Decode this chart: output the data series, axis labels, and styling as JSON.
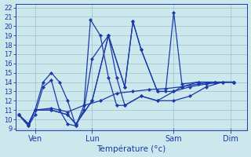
{
  "background_color": "#cce8ec",
  "grid_color": "#99bbcc",
  "line_color": "#1a3aaa",
  "xlabel": "Température (°c)",
  "ylim_min": 8.8,
  "ylim_max": 22.4,
  "xlim_min": -0.2,
  "xlim_max": 14.0,
  "yticks": [
    9,
    10,
    11,
    12,
    13,
    14,
    15,
    16,
    17,
    18,
    19,
    20,
    21,
    22
  ],
  "xtick_positions": [
    1.0,
    4.5,
    9.5,
    13.0
  ],
  "xtick_labels": [
    "Ven",
    "Lun",
    "Sam",
    "Dim"
  ],
  "series": [
    {
      "x": [
        0.0,
        0.6,
        1.0,
        1.5,
        2.0,
        2.5,
        3.0,
        3.5,
        4.0,
        4.5,
        5.5,
        6.0,
        6.5,
        7.5,
        8.5,
        9.5,
        10.5,
        11.5,
        12.5,
        13.2
      ],
      "y": [
        10.5,
        9.3,
        11.0,
        14.0,
        15.0,
        14.0,
        12.0,
        9.3,
        11.0,
        16.5,
        19.0,
        14.5,
        11.5,
        12.5,
        12.0,
        13.0,
        13.5,
        13.8,
        14.0,
        14.0
      ]
    },
    {
      "x": [
        0.0,
        0.6,
        1.0,
        1.5,
        2.0,
        2.5,
        3.0,
        3.5,
        4.0,
        4.4,
        5.0,
        5.5,
        6.0,
        6.5,
        7.5,
        8.5,
        9.5,
        10.5,
        11.5,
        12.5,
        13.2
      ],
      "y": [
        10.5,
        9.3,
        10.5,
        13.5,
        14.2,
        11.0,
        9.5,
        9.3,
        11.5,
        20.7,
        19.0,
        14.5,
        11.5,
        11.5,
        12.5,
        12.0,
        12.0,
        12.5,
        13.5,
        14.0,
        14.0
      ]
    },
    {
      "x": [
        0.0,
        0.6,
        1.0,
        2.0,
        3.0,
        3.5,
        4.5,
        5.5,
        6.5,
        7.0,
        7.5,
        8.5,
        9.5,
        10.0,
        11.0,
        12.0,
        13.2
      ],
      "y": [
        10.5,
        9.5,
        11.0,
        11.0,
        10.5,
        9.5,
        12.0,
        19.0,
        13.5,
        20.5,
        17.5,
        13.0,
        13.0,
        13.5,
        14.0,
        14.0,
        14.0
      ]
    },
    {
      "x": [
        0.0,
        0.6,
        1.0,
        2.0,
        3.0,
        3.5,
        4.5,
        5.5,
        6.5,
        7.0,
        7.5,
        8.5,
        9.0,
        9.5,
        10.0,
        11.0,
        12.0,
        13.2
      ],
      "y": [
        10.5,
        9.5,
        11.0,
        11.0,
        10.5,
        9.5,
        12.0,
        19.0,
        13.5,
        20.5,
        17.5,
        13.0,
        13.0,
        21.5,
        13.8,
        14.0,
        14.0,
        14.0
      ]
    },
    {
      "x": [
        0.0,
        0.6,
        1.0,
        2.0,
        3.0,
        4.0,
        5.0,
        6.0,
        7.0,
        8.0,
        9.0,
        10.0,
        11.0,
        12.0,
        13.2
      ],
      "y": [
        10.5,
        9.5,
        11.0,
        11.2,
        10.8,
        11.5,
        12.0,
        12.8,
        13.0,
        13.2,
        13.3,
        13.5,
        13.8,
        14.0,
        14.0
      ]
    }
  ]
}
